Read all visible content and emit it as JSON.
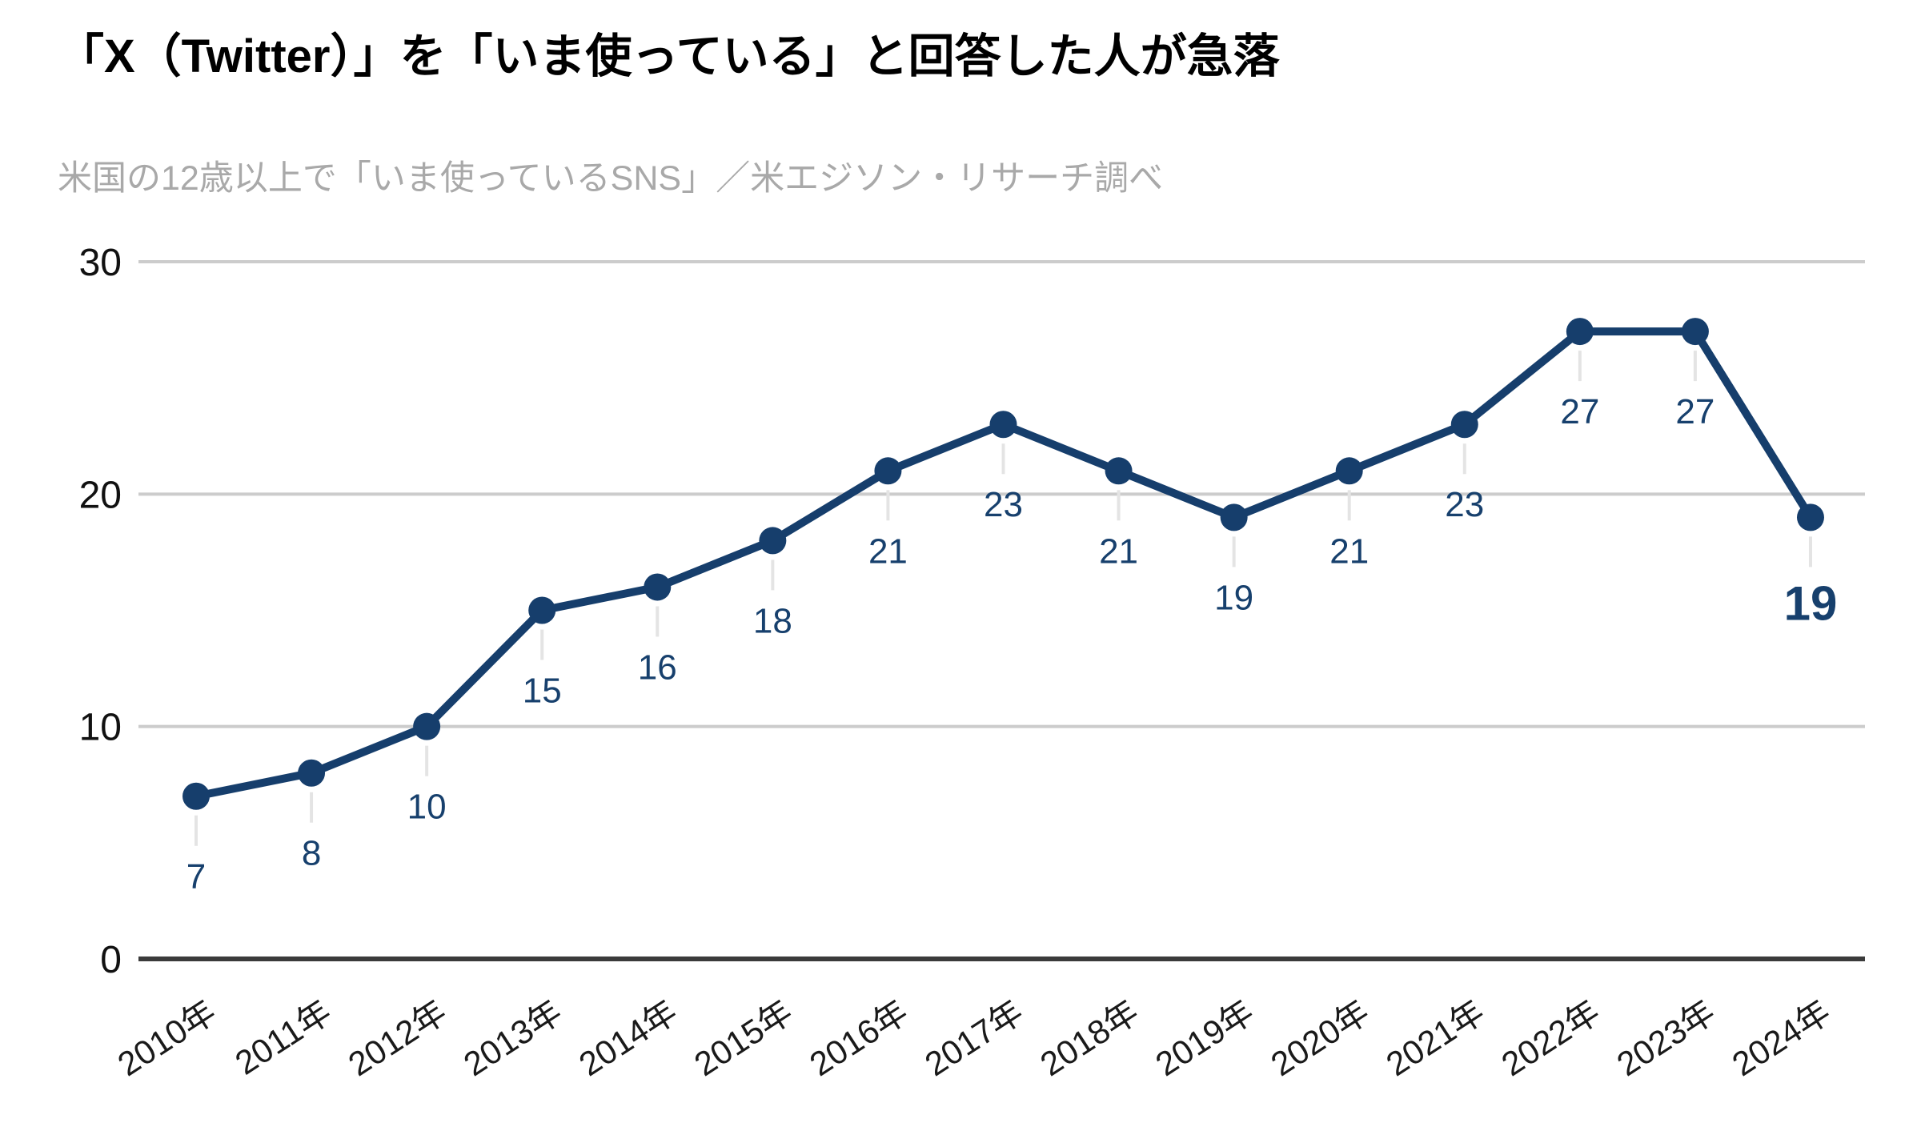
{
  "page": {
    "background": "#ffffff"
  },
  "chart_data": {
    "type": "line",
    "title": "「X（Twitter）」を「いま使っている」と回答した人が急落",
    "subtitle": "米国の12歳以上で「いま使っているSNS」／米エジソン・リサーチ調べ",
    "categories": [
      "2010年",
      "2011年",
      "2012年",
      "2013年",
      "2014年",
      "2015年",
      "2016年",
      "2017年",
      "2018年",
      "2019年",
      "2020年",
      "2021年",
      "2022年",
      "2023年",
      "2024年"
    ],
    "values": [
      7,
      8,
      10,
      15,
      16,
      18,
      21,
      23,
      21,
      19,
      21,
      23,
      27,
      27,
      19
    ],
    "ylim": [
      0,
      30
    ],
    "yticks": [
      0,
      10,
      20,
      30
    ],
    "xlabel": "",
    "ylabel": "",
    "legend": "none",
    "grid": "horizontal",
    "data_labels": "below-points",
    "emphasized_point_index": 14,
    "colors": {
      "line": "#163e6c",
      "point": "#163e6c",
      "value_label": "#17406d",
      "title": "#000000",
      "subtitle": "#a9a9a9",
      "y_axis_label": "#111111",
      "x_axis_label": "#1a1a1a",
      "gridline": "#cccccc",
      "zero_axis": "#3b3b3b",
      "leader_line": "#e4e4e4"
    }
  }
}
